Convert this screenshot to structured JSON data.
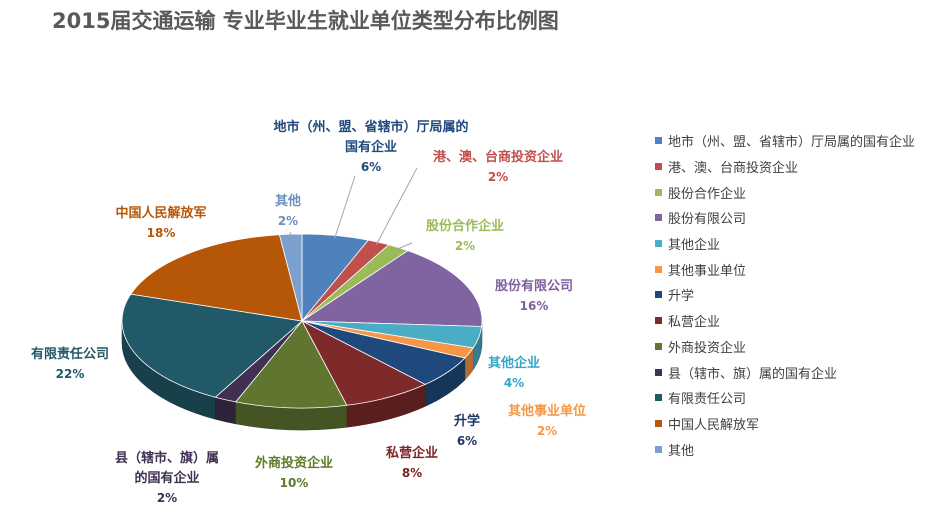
{
  "title": "2015届交通运输 专业毕业生就业单位类型分布比例图",
  "chart_data": {
    "type": "pie",
    "title": "2015届交通运输 专业毕业生就业单位类型分布比例图",
    "legend_position": "right",
    "slices": [
      {
        "name": "地市（州、盟、省辖市）厅局属的国有企业",
        "label": "地市（州、盟、省辖市）厅局属的\n国有企业",
        "value": 6,
        "value_label": "6%",
        "color": "#4f81bd",
        "label_color": "#1f497d"
      },
      {
        "name": "港、澳、台商投资企业",
        "label": "港、澳、台商投资企业",
        "value": 2,
        "value_label": "2%",
        "color": "#c0504d",
        "label_color": "#c0504d"
      },
      {
        "name": "股份合作企业",
        "label": "股份合作企业",
        "value": 2,
        "value_label": "2%",
        "color": "#9bbb59",
        "label_color": "#9bbb59"
      },
      {
        "name": "股份有限公司",
        "label": "股份有限公司",
        "value": 16,
        "value_label": "16%",
        "color": "#8064a2",
        "label_color": "#7f5f9f"
      },
      {
        "name": "其他企业",
        "label": "其他企业",
        "value": 4,
        "value_label": "4%",
        "color": "#4bacc6",
        "label_color": "#31a6c6"
      },
      {
        "name": "其他事业单位",
        "label": "其他事业单位",
        "value": 2,
        "value_label": "2%",
        "color": "#f79646",
        "label_color": "#f79646"
      },
      {
        "name": "升学",
        "label": "升学",
        "value": 6,
        "value_label": "6%",
        "color": "#1f497d",
        "label_color": "#1f3864"
      },
      {
        "name": "私营企业",
        "label": "私营企业",
        "value": 8,
        "value_label": "8%",
        "color": "#7f2a2a",
        "label_color": "#7f2222"
      },
      {
        "name": "外商投资企业",
        "label": "外商投资企业",
        "value": 10,
        "value_label": "10%",
        "color": "#5f7530",
        "label_color": "#5f7a2a"
      },
      {
        "name": "县（辖市、旗）属的国有企业",
        "label": "县（辖市、旗）属\n的国有企业",
        "value": 2,
        "value_label": "2%",
        "color": "#403152",
        "label_color": "#403152"
      },
      {
        "name": "有限责任公司",
        "label": "有限责任公司",
        "value": 22,
        "value_label": "22%",
        "color": "#215968",
        "label_color": "#215968"
      },
      {
        "name": "中国人民解放军",
        "label": "中国人民解放军",
        "value": 18,
        "value_label": "18%",
        "color": "#b65708",
        "label_color": "#b65708"
      },
      {
        "name": "其他",
        "label": "其他",
        "value": 2,
        "value_label": "2%",
        "color": "#7ba0cd",
        "label_color": "#6d8fbf"
      }
    ]
  }
}
